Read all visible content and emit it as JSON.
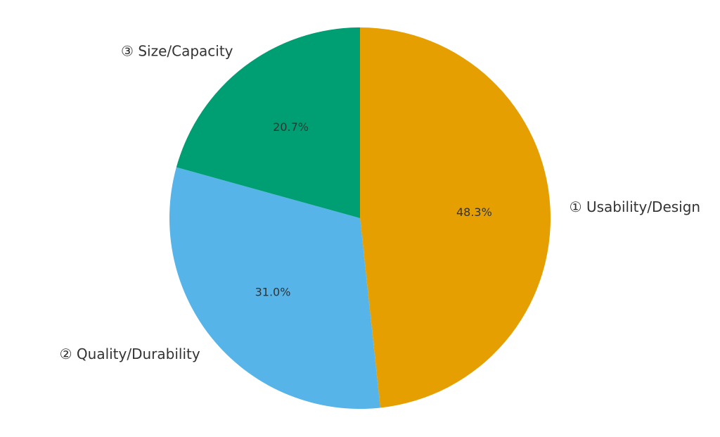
{
  "chart_data": {
    "type": "pie",
    "slices": [
      {
        "label": "① Usability/Design",
        "value": 48.3,
        "pct_label": "48.3%",
        "color": "#E69F00"
      },
      {
        "label": "② Quality/Durability",
        "value": 31.0,
        "pct_label": "31.0%",
        "color": "#56B4E9"
      },
      {
        "label": "③ Size/Capacity",
        "value": 20.7,
        "pct_label": "20.7%",
        "color": "#009E73"
      }
    ],
    "start_angle": "12 o'clock",
    "direction": "clockwise",
    "legend": "none"
  }
}
